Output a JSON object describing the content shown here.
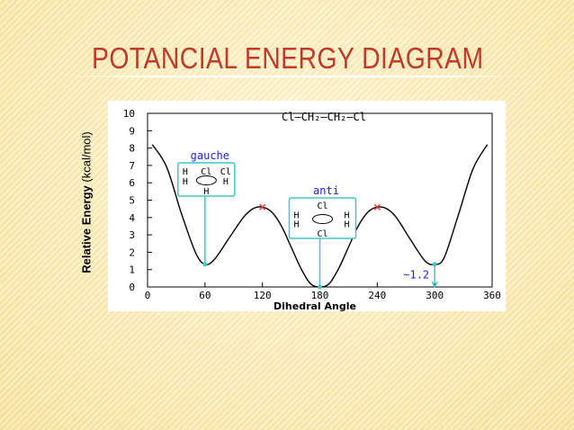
{
  "slide": {
    "title": "POTANCIAL ENERGY DIAGRAM"
  },
  "chart_data": {
    "type": "line",
    "title": "Cl–CH₂–CH₂–Cl",
    "xlabel": "Dihedral Angle",
    "ylabel_main": "Relative Energy",
    "ylabel_unit": "(kcal/mol)",
    "xlim": [
      0,
      360
    ],
    "ylim": [
      0,
      10
    ],
    "x_ticks": [
      0,
      60,
      120,
      180,
      240,
      300,
      360
    ],
    "y_ticks": [
      0,
      1,
      2,
      3,
      4,
      5,
      6,
      7,
      8,
      9,
      10
    ],
    "grid": false,
    "series": [
      {
        "x": [
          5,
          20,
          35,
          50,
          60,
          70,
          85,
          100,
          110,
          120,
          130,
          140,
          150,
          160,
          170,
          180,
          190,
          200,
          210,
          220,
          230,
          240,
          250,
          260,
          275,
          290,
          300,
          310,
          325,
          340,
          355
        ],
        "y": [
          8.2,
          6.9,
          4.3,
          2.0,
          1.3,
          1.6,
          2.8,
          4.0,
          4.5,
          4.6,
          4.3,
          3.5,
          2.3,
          1.1,
          0.2,
          0.0,
          0.2,
          1.1,
          2.3,
          3.5,
          4.3,
          4.6,
          4.5,
          4.0,
          2.7,
          1.5,
          1.3,
          1.7,
          4.2,
          6.8,
          8.2
        ],
        "color": "#000000"
      }
    ],
    "maxima": [
      {
        "x": 120,
        "y": 4.6
      },
      {
        "x": 240,
        "y": 4.6
      }
    ],
    "minima": [
      {
        "x": 60,
        "y": 1.3
      },
      {
        "x": 180,
        "y": 0.0
      },
      {
        "x": 300,
        "y": 1.3
      }
    ],
    "annotations": {
      "gauche": {
        "label": "gauche",
        "x": 60,
        "y": 1.3,
        "lines": [
          [
            "H",
            "Cl",
            "Cl"
          ],
          [
            "H",
            "",
            "H"
          ],
          [
            "",
            "H",
            ""
          ]
        ]
      },
      "anti": {
        "label": "anti",
        "x": 180,
        "y": 0.0,
        "lines": [
          [
            "",
            "Cl",
            ""
          ],
          [
            "H",
            "",
            "H"
          ],
          [
            "H",
            "",
            "H"
          ],
          [
            "",
            "Cl",
            ""
          ]
        ]
      },
      "energy_gap": {
        "label": "~1.2",
        "x": 300,
        "from": 1.3,
        "to": 0.0
      }
    },
    "colors": {
      "curve": "#000000",
      "annotation": "#3fc7c7",
      "label_blue": "#1a1aff",
      "maximum_marker": "#e53935"
    }
  }
}
